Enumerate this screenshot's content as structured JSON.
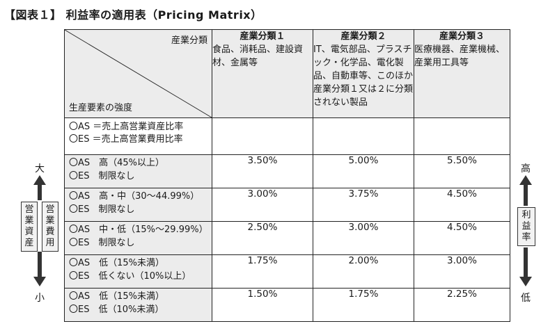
{
  "title": "【図表１】 利益率の適用表（Pricing Matrix）",
  "corner": {
    "top": "産業分類",
    "bottom": "生産要素の強度"
  },
  "columns": [
    {
      "name": "産業分類１",
      "desc": "食品、消耗品、建設資材、金属等"
    },
    {
      "name": "産業分類２",
      "desc": "IT、電気部品、プラスチック・化学品、電化製品、自動車等、このほか産業分類１又は２に分類されない製品"
    },
    {
      "name": "産業分類３",
      "desc": "医療機器、産業機械、産業用工具等"
    }
  ],
  "definition": {
    "as": "〇AS ＝売上高営業資産比率",
    "es": "〇ES ＝売上高営業費用比率"
  },
  "rows": [
    {
      "as": "〇AS　高（45%以上）",
      "es": "〇ES　制限なし",
      "values": [
        "3.50%",
        "5.00%",
        "5.50%"
      ]
    },
    {
      "as": "〇AS　高・中（30〜44.99%）",
      "es": "〇ES　制限なし",
      "values": [
        "3.00%",
        "3.75%",
        "4.50%"
      ]
    },
    {
      "as": "〇AS　中・低（15%〜29.99%）",
      "es": "〇ES　制限なし",
      "values": [
        "2.50%",
        "3.00%",
        "4.50%"
      ]
    },
    {
      "as": "〇AS　低（15%未満）",
      "es": "〇ES　低くない（10%以上）",
      "values": [
        "1.75%",
        "2.00%",
        "3.00%"
      ]
    },
    {
      "as": "〇AS　低（15%未満）",
      "es": "〇ES　低（10%未満）",
      "values": [
        "1.50%",
        "1.75%",
        "2.25%"
      ]
    }
  ],
  "left_axis": {
    "top": "大",
    "bottom": "小",
    "box1": [
      "営",
      "業",
      "資",
      "産"
    ],
    "box2": [
      "営",
      "業",
      "費",
      "用"
    ]
  },
  "right_axis": {
    "top": "高",
    "bottom": "低",
    "box": [
      "利",
      "益",
      "率"
    ]
  }
}
